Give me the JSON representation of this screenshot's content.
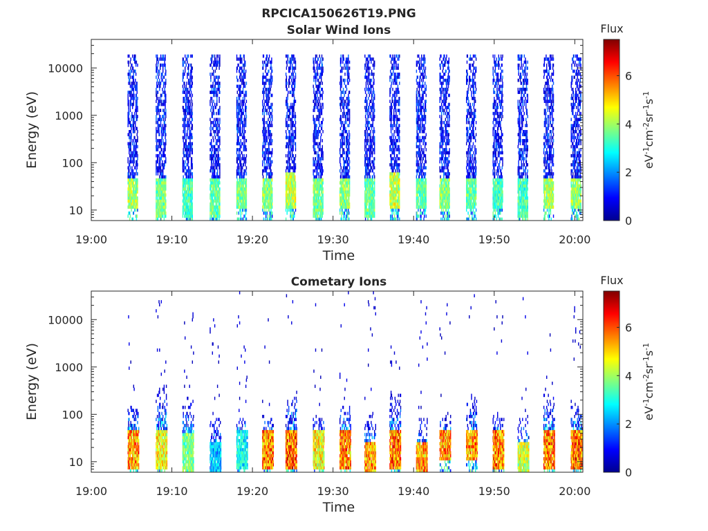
{
  "figure": {
    "title": "RPCICA150626T19.PNG"
  },
  "colormap": {
    "name": "jet",
    "stops": [
      "#00008f",
      "#0000ff",
      "#00ffff",
      "#80ff80",
      "#ffff00",
      "#ff8000",
      "#ff0000",
      "#800000"
    ]
  },
  "chart_data": [
    {
      "type": "heatmap",
      "title": "Solar Wind Ions",
      "xlabel": "Time",
      "ylabel": "Energy (eV)",
      "x_range": [
        "19:00",
        "20:01"
      ],
      "x_ticks": [
        "19:00",
        "19:10",
        "19:20",
        "19:30",
        "19:40",
        "19:50",
        "20:00"
      ],
      "y_scale": "log",
      "y_range": [
        6,
        40000
      ],
      "y_ticks": [
        10,
        100,
        1000,
        10000
      ],
      "y_tick_labels": [
        "10",
        "100",
        "1000",
        "10000"
      ],
      "colorbar": {
        "title": "Flux",
        "label": "eV-1cm-2sr-1s-1",
        "range": [
          0,
          7.5
        ],
        "ticks": [
          0,
          2,
          4,
          6
        ],
        "tick_labels": [
          "0",
          "2",
          "4",
          "6"
        ]
      },
      "grid": false,
      "sweep_start_minutes": [
        4.6,
        8.1,
        11.4,
        14.8,
        18.1,
        21.3,
        24.2,
        27.6,
        30.9,
        34.0,
        37.1,
        40.4,
        43.3,
        46.6,
        49.9,
        53.0,
        56.2,
        59.6
      ],
      "features": [
        {
          "minute": 4.6,
          "dominant_energy_eV": [
            15,
            40
          ],
          "peak_flux": 4.5,
          "max_energy_eV": 20000
        },
        {
          "minute": 8.1,
          "dominant_energy_eV": [
            10,
            40
          ],
          "peak_flux": 4.0,
          "max_energy_eV": 20000
        },
        {
          "minute": 11.4,
          "dominant_energy_eV": [
            10,
            40
          ],
          "peak_flux": 3.5,
          "max_energy_eV": 20000
        },
        {
          "minute": 14.8,
          "dominant_energy_eV": [
            10,
            40
          ],
          "peak_flux": 3.8,
          "max_energy_eV": 20000
        },
        {
          "minute": 18.1,
          "dominant_energy_eV": [
            15,
            40
          ],
          "peak_flux": 4.0,
          "max_energy_eV": 20000
        },
        {
          "minute": 21.3,
          "dominant_energy_eV": [
            15,
            40
          ],
          "peak_flux": 4.2,
          "max_energy_eV": 20000
        },
        {
          "minute": 24.2,
          "dominant_energy_eV": [
            15,
            50
          ],
          "peak_flux": 4.8,
          "max_energy_eV": 20000
        },
        {
          "minute": 27.6,
          "dominant_energy_eV": [
            10,
            40
          ],
          "peak_flux": 4.0,
          "max_energy_eV": 20000
        },
        {
          "minute": 30.9,
          "dominant_energy_eV": [
            15,
            40
          ],
          "peak_flux": 4.2,
          "max_energy_eV": 20000
        },
        {
          "minute": 34.0,
          "dominant_energy_eV": [
            10,
            40
          ],
          "peak_flux": 3.8,
          "max_energy_eV": 20000
        },
        {
          "minute": 37.1,
          "dominant_energy_eV": [
            15,
            50
          ],
          "peak_flux": 4.8,
          "max_energy_eV": 20000
        },
        {
          "minute": 40.4,
          "dominant_energy_eV": [
            15,
            40
          ],
          "peak_flux": 3.8,
          "max_energy_eV": 20000
        },
        {
          "minute": 43.3,
          "dominant_energy_eV": [
            15,
            40
          ],
          "peak_flux": 4.2,
          "max_energy_eV": 20000
        },
        {
          "minute": 46.6,
          "dominant_energy_eV": [
            15,
            40
          ],
          "peak_flux": 3.8,
          "max_energy_eV": 20000
        },
        {
          "minute": 49.9,
          "dominant_energy_eV": [
            15,
            40
          ],
          "peak_flux": 3.5,
          "max_energy_eV": 20000
        },
        {
          "minute": 53.0,
          "dominant_energy_eV": [
            10,
            40
          ],
          "peak_flux": 3.5,
          "max_energy_eV": 20000
        },
        {
          "minute": 56.2,
          "dominant_energy_eV": [
            15,
            40
          ],
          "peak_flux": 4.6,
          "max_energy_eV": 20000
        },
        {
          "minute": 59.6,
          "dominant_energy_eV": [
            15,
            40
          ],
          "peak_flux": 4.4,
          "max_energy_eV": 20000
        }
      ]
    },
    {
      "type": "heatmap",
      "title": "Cometary Ions",
      "xlabel": "Time",
      "ylabel": "Energy (eV)",
      "x_range": [
        "19:00",
        "20:01"
      ],
      "x_ticks": [
        "19:00",
        "19:10",
        "19:20",
        "19:30",
        "19:40",
        "19:50",
        "20:00"
      ],
      "y_scale": "log",
      "y_range": [
        6,
        40000
      ],
      "y_ticks": [
        10,
        100,
        1000,
        10000
      ],
      "y_tick_labels": [
        "10",
        "100",
        "1000",
        "10000"
      ],
      "colorbar": {
        "title": "Flux",
        "label": "eV-1cm-2sr-1s-1",
        "range": [
          0,
          7.5
        ],
        "ticks": [
          0,
          2,
          4,
          6
        ],
        "tick_labels": [
          "0",
          "2",
          "4",
          "6"
        ]
      },
      "grid": false,
      "sweep_start_minutes": [
        4.6,
        8.1,
        11.4,
        14.8,
        18.1,
        21.3,
        24.2,
        27.6,
        30.9,
        34.0,
        37.1,
        40.4,
        43.3,
        46.6,
        49.9,
        53.0,
        56.2,
        59.6
      ],
      "features": [
        {
          "minute": 4.6,
          "dominant_energy_eV": [
            10,
            40
          ],
          "peak_flux": 6.5,
          "max_energy_eV": 200
        },
        {
          "minute": 8.1,
          "dominant_energy_eV": [
            10,
            40
          ],
          "peak_flux": 5.5,
          "max_energy_eV": 500
        },
        {
          "minute": 11.4,
          "dominant_energy_eV": [
            8,
            30
          ],
          "peak_flux": 4.0,
          "max_energy_eV": 300
        },
        {
          "minute": 14.8,
          "dominant_energy_eV": [
            8,
            20
          ],
          "peak_flux": 2.5,
          "max_energy_eV": 100
        },
        {
          "minute": 18.1,
          "dominant_energy_eV": [
            10,
            40
          ],
          "peak_flux": 3.0,
          "max_energy_eV": 100
        },
        {
          "minute": 21.3,
          "dominant_energy_eV": [
            10,
            40
          ],
          "peak_flux": 6.8,
          "max_energy_eV": 100
        },
        {
          "minute": 24.2,
          "dominant_energy_eV": [
            10,
            40
          ],
          "peak_flux": 7.3,
          "max_energy_eV": 400
        },
        {
          "minute": 27.6,
          "dominant_energy_eV": [
            10,
            40
          ],
          "peak_flux": 5.5,
          "max_energy_eV": 100
        },
        {
          "minute": 30.9,
          "dominant_energy_eV": [
            10,
            40
          ],
          "peak_flux": 6.8,
          "max_energy_eV": 200
        },
        {
          "minute": 34.0,
          "dominant_energy_eV": [
            8,
            20
          ],
          "peak_flux": 6.5,
          "max_energy_eV": 100
        },
        {
          "minute": 37.1,
          "dominant_energy_eV": [
            10,
            40
          ],
          "peak_flux": 7.2,
          "max_energy_eV": 300
        },
        {
          "minute": 40.4,
          "dominant_energy_eV": [
            8,
            20
          ],
          "peak_flux": 6.5,
          "max_energy_eV": 100
        },
        {
          "minute": 43.3,
          "dominant_energy_eV": [
            15,
            40
          ],
          "peak_flux": 6.5,
          "max_energy_eV": 100
        },
        {
          "minute": 46.6,
          "dominant_energy_eV": [
            15,
            40
          ],
          "peak_flux": 6.5,
          "max_energy_eV": 300
        },
        {
          "minute": 49.9,
          "dominant_energy_eV": [
            10,
            40
          ],
          "peak_flux": 6.8,
          "max_energy_eV": 100
        },
        {
          "minute": 53.0,
          "dominant_energy_eV": [
            8,
            20
          ],
          "peak_flux": 5.0,
          "max_energy_eV": 100
        },
        {
          "minute": 56.2,
          "dominant_energy_eV": [
            10,
            40
          ],
          "peak_flux": 7.0,
          "max_energy_eV": 400
        },
        {
          "minute": 59.6,
          "dominant_energy_eV": [
            10,
            40
          ],
          "peak_flux": 7.0,
          "max_energy_eV": 200
        }
      ]
    }
  ]
}
